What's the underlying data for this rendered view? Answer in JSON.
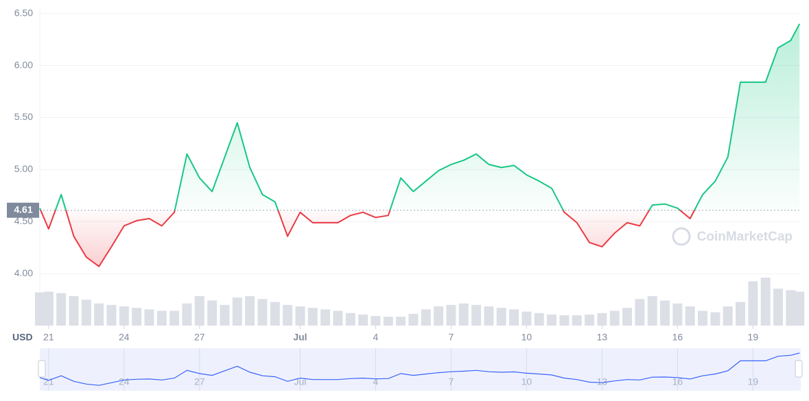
{
  "chart_data": {
    "type": "line",
    "currency_label": "USD",
    "watermark": "CoinMarketCap",
    "baseline": 4.61,
    "color_up": "#16c784",
    "color_down": "#ea3943",
    "grid": true,
    "x": [
      20.65,
      21,
      21.5,
      22,
      22.5,
      23,
      23.5,
      24,
      24.5,
      25,
      25.5,
      26,
      26.5,
      27,
      27.5,
      28,
      28.5,
      29,
      29.5,
      30,
      30.5,
      31,
      31.5,
      32,
      32.5,
      33,
      33.5,
      34,
      34.5,
      35,
      35.5,
      36,
      36.5,
      37,
      37.5,
      38,
      38.5,
      39,
      39.5,
      40,
      40.5,
      41,
      41.5,
      42,
      42.5,
      43,
      43.5,
      44,
      44.5,
      45,
      45.5,
      46,
      46.5,
      47,
      47.5,
      48,
      48.5,
      49,
      49.5,
      50,
      50.5,
      50.85
    ],
    "values": [
      4.63,
      4.43,
      4.76,
      4.36,
      4.16,
      4.07,
      4.26,
      4.46,
      4.51,
      4.53,
      4.46,
      4.59,
      5.15,
      4.92,
      4.79,
      5.12,
      5.45,
      5.02,
      4.76,
      4.69,
      4.36,
      4.59,
      4.49,
      4.49,
      4.49,
      4.56,
      4.59,
      4.54,
      4.56,
      4.92,
      4.79,
      4.89,
      4.99,
      5.05,
      5.09,
      5.15,
      5.05,
      5.02,
      5.04,
      4.95,
      4.89,
      4.82,
      4.59,
      4.49,
      4.3,
      4.26,
      4.39,
      4.49,
      4.46,
      4.66,
      4.67,
      4.63,
      4.53,
      4.76,
      4.89,
      5.12,
      5.84,
      5.84,
      5.84,
      6.17,
      6.24,
      6.4
    ],
    "volume": [
      45,
      46,
      44,
      40,
      35,
      30,
      28,
      26,
      24,
      22,
      20,
      20,
      30,
      40,
      34,
      28,
      38,
      40,
      36,
      32,
      28,
      26,
      24,
      22,
      20,
      17,
      15,
      13,
      12,
      12,
      16,
      22,
      26,
      28,
      30,
      28,
      26,
      24,
      22,
      19,
      17,
      15,
      14,
      14,
      15,
      17,
      20,
      24,
      36,
      40,
      34,
      30,
      26,
      20,
      18,
      26,
      32,
      60,
      65,
      50,
      48,
      46
    ],
    "xlim": [
      20.65,
      50.9
    ],
    "xticks": [
      21,
      24,
      27,
      {
        "value": 31,
        "label": "Jul"
      },
      {
        "value": 34,
        "label": "4"
      },
      {
        "value": 37,
        "label": "7"
      },
      {
        "value": 40,
        "label": "10"
      },
      {
        "value": 43,
        "label": "13"
      },
      {
        "value": 46,
        "label": "16"
      },
      {
        "value": 49,
        "label": "19"
      }
    ],
    "ylim": [
      3.93,
      6.55
    ],
    "yticks": [
      {
        "value": 4,
        "label": "4.00"
      },
      {
        "value": 4.5,
        "label": "4.50"
      },
      {
        "value": 5,
        "label": "5.00"
      },
      {
        "value": 5.5,
        "label": "5.50"
      },
      {
        "value": 6,
        "label": "6.00"
      },
      {
        "value": 6.5,
        "label": "6.50"
      }
    ]
  }
}
